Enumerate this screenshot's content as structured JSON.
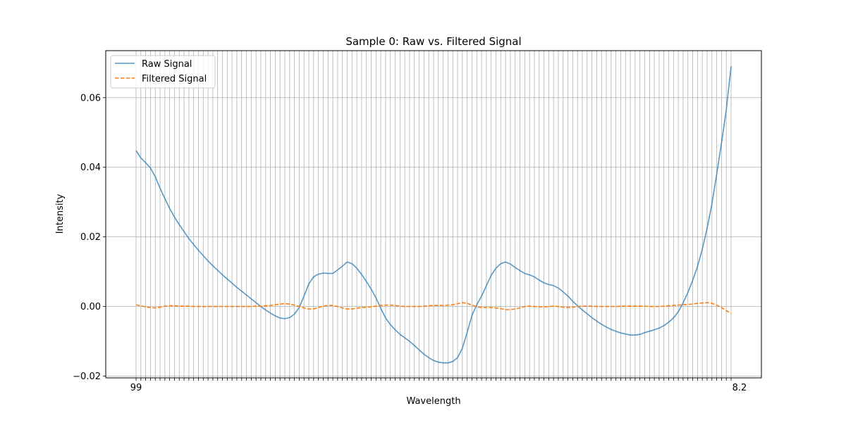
{
  "chart_data": {
    "type": "line",
    "title": "Sample 0: Raw vs. Filtered Signal",
    "xlabel": "Wavelength",
    "ylabel": "Intensity",
    "ylim": [
      -0.0205,
      0.0735
    ],
    "yticks": [
      -0.02,
      0.0,
      0.02,
      0.04,
      0.06
    ],
    "ytick_labels": [
      "−0.02",
      "0.00",
      "0.02",
      "0.04",
      "0.06"
    ],
    "x_tick_labels_visible": [
      "99",
      "8.2"
    ],
    "x_tick_count": 125,
    "grid": true,
    "legend_position": "upper left",
    "series": [
      {
        "name": "Raw Signal",
        "color": "#1f77b4",
        "style": "solid",
        "values": [
          0.0448,
          0.0427,
          0.0413,
          0.0398,
          0.0373,
          0.034,
          0.031,
          0.0282,
          0.0257,
          0.0235,
          0.0215,
          0.0195,
          0.0178,
          0.0161,
          0.0146,
          0.0131,
          0.0117,
          0.0104,
          0.0091,
          0.0079,
          0.0067,
          0.0055,
          0.0044,
          0.0033,
          0.0022,
          0.0011,
          0.0,
          -0.001,
          -0.0019,
          -0.0027,
          -0.0033,
          -0.0035,
          -0.0032,
          -0.0022,
          -0.0003,
          0.003,
          0.0065,
          0.0085,
          0.0093,
          0.0096,
          0.0095,
          0.0095,
          0.0105,
          0.0116,
          0.0128,
          0.0123,
          0.011,
          0.0092,
          0.0072,
          0.005,
          0.0025,
          -0.0005,
          -0.0033,
          -0.0052,
          -0.0067,
          -0.008,
          -0.009,
          -0.01,
          -0.0112,
          -0.0125,
          -0.0137,
          -0.0147,
          -0.0155,
          -0.016,
          -0.0162,
          -0.0162,
          -0.0158,
          -0.0147,
          -0.012,
          -0.0075,
          -0.0025,
          0.0005,
          0.003,
          0.006,
          0.009,
          0.011,
          0.0123,
          0.0128,
          0.0122,
          0.0112,
          0.0103,
          0.0095,
          0.0091,
          0.0085,
          0.0076,
          0.0068,
          0.0063,
          0.006,
          0.0053,
          0.0042,
          0.003,
          0.0015,
          0.0002,
          -0.001,
          -0.0021,
          -0.0032,
          -0.0042,
          -0.0051,
          -0.0059,
          -0.0066,
          -0.0071,
          -0.0076,
          -0.0079,
          -0.0082,
          -0.0082,
          -0.008,
          -0.0075,
          -0.0071,
          -0.0067,
          -0.0062,
          -0.0055,
          -0.0045,
          -0.0033,
          -0.0015,
          0.001,
          0.004,
          0.0075,
          0.0115,
          0.0165,
          0.0225,
          0.0295,
          0.038,
          0.047,
          0.0565,
          0.069
        ]
      },
      {
        "name": "Filtered Signal",
        "color": "#ff7f0e",
        "style": "dashed",
        "values": [
          0.0005,
          0.0002,
          -0.0001,
          -0.0003,
          -0.0004,
          -0.0002,
          0.0001,
          0.0002,
          0.0002,
          0.0001,
          0.0001,
          0.0001,
          0.0,
          0.0,
          0.0,
          0.0,
          0.0,
          0.0,
          0.0,
          0.0,
          0.0,
          0.0,
          0.0,
          0.0,
          0.0,
          0.0001,
          0.0001,
          0.0002,
          0.0003,
          0.0005,
          0.0007,
          0.0008,
          0.0007,
          0.0004,
          0.0,
          -0.0004,
          -0.0007,
          -0.0007,
          -0.0003,
          0.0001,
          0.0003,
          0.0003,
          0.0,
          -0.0004,
          -0.0007,
          -0.0007,
          -0.0005,
          -0.0003,
          -0.0002,
          -0.0001,
          0.0001,
          0.0003,
          0.0004,
          0.0004,
          0.0003,
          0.0001,
          0.0,
          0.0,
          0.0,
          0.0,
          0.0001,
          0.0002,
          0.0003,
          0.0003,
          0.0003,
          0.0004,
          0.0005,
          0.0008,
          0.0011,
          0.0009,
          0.0004,
          -0.0001,
          -0.0003,
          -0.0003,
          -0.0003,
          -0.0004,
          -0.0006,
          -0.0009,
          -0.0009,
          -0.0007,
          -0.0004,
          0.0,
          0.0001,
          0.0,
          -0.0001,
          -0.0001,
          0.0,
          0.0001,
          0.0,
          -0.0002,
          -0.0003,
          -0.0002,
          0.0,
          0.0001,
          0.0001,
          0.0001,
          0.0,
          0.0,
          0.0,
          0.0,
          0.0,
          0.0001,
          0.0001,
          0.0001,
          0.0001,
          0.0001,
          0.0001,
          0.0,
          0.0,
          0.0,
          0.0001,
          0.0002,
          0.0003,
          0.0004,
          0.0005,
          0.0006,
          0.0007,
          0.0009,
          0.001,
          0.0011,
          0.0009,
          0.0004,
          -0.0003,
          -0.0012,
          -0.002
        ]
      }
    ]
  }
}
